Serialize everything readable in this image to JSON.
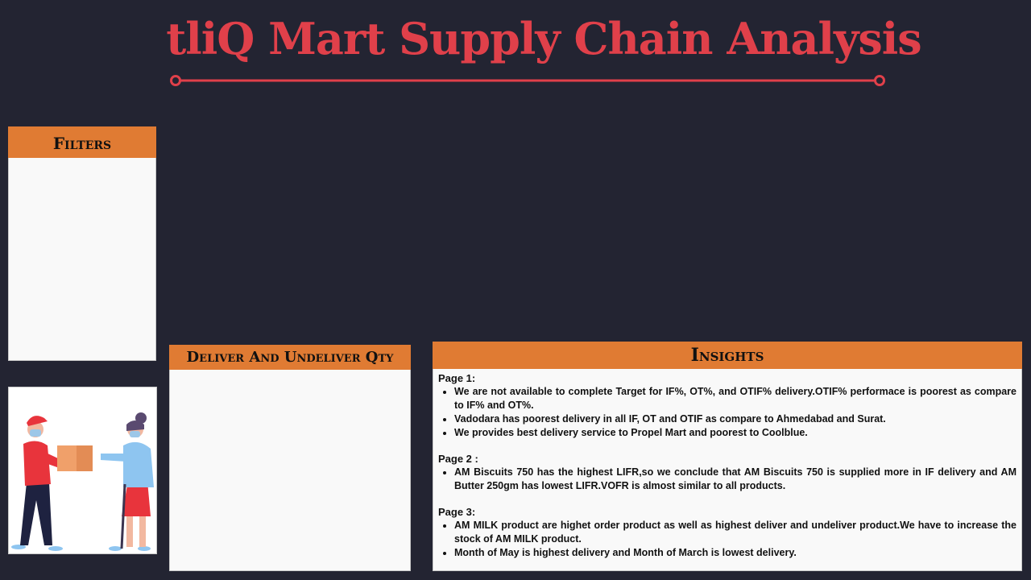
{
  "title": "tliQ Mart Supply Chain Analysis",
  "filters": {
    "label": "Filters"
  },
  "deliver_panel": {
    "label": "Deliver And Undeliver Qty"
  },
  "insights": {
    "label": "Insights",
    "pages": [
      {
        "title": "Page 1:",
        "items": [
          "We are not available to complete Target for IF%, OT%, and OTIF% delivery.OTIF% performace is poorest as compare to IF% and OT%.",
          "Vadodara has poorest delivery in all IF, OT and OTIF as compare to Ahmedabad and Surat.",
          "We provides best delivery service to Propel Mart and poorest to Coolblue."
        ]
      },
      {
        "title": "Page 2 :",
        "items": [
          "AM Biscuits 750 has the highest LIFR,so we conclude that AM Biscuits 750 is supplied more in IF delivery and AM Butter 250gm has lowest LIFR.VOFR is almost similar to all products."
        ]
      },
      {
        "title": "Page 3:",
        "items": [
          "AM MILK product are highet order product as well as highest deliver and undeliver product.We have to increase the stock of AM MILK product.",
          "Month of May is highest delivery and Month of March is lowest delivery."
        ]
      }
    ]
  },
  "colors": {
    "background": "#232432",
    "title": "#e0404a",
    "header": "#e07b33",
    "panel": "#f9f9f9"
  },
  "icons": [
    "delivery-illustration"
  ]
}
